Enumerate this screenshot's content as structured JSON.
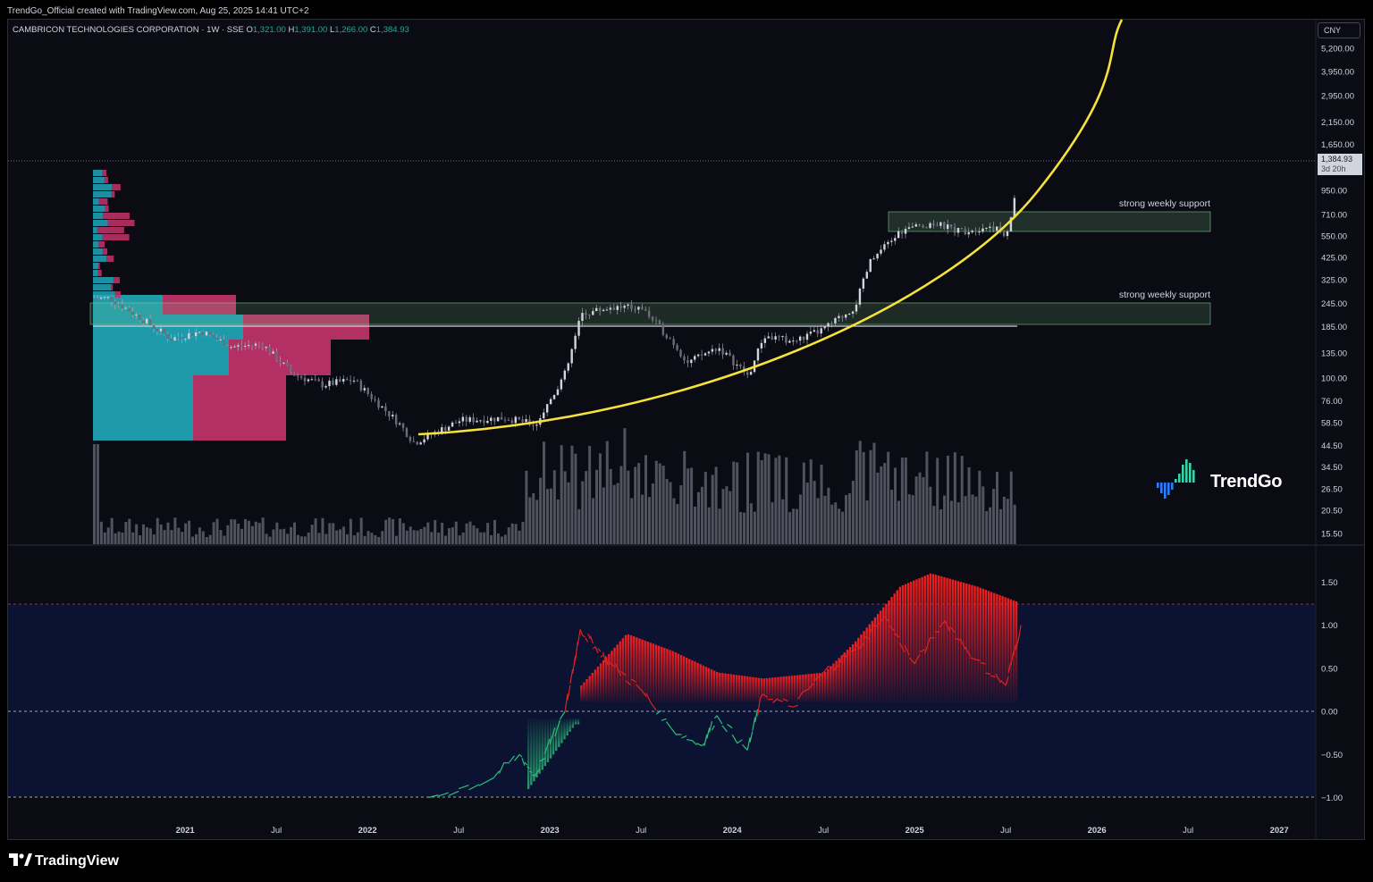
{
  "credit": "TrendGo_Official created with TradingView.com, Aug 25, 2025 14:41 UTC+2",
  "symbol": {
    "name": "CAMBRICON TECHNOLOGIES CORPORATION · 1W · SSE",
    "o_label": "O",
    "o": "1,321.00",
    "h_label": "H",
    "h": "1,391.00",
    "l_label": "L",
    "l": "1,266.00",
    "c_label": "C",
    "c": "1,384.93"
  },
  "currency": "CNY",
  "last_price": {
    "value": "1,384.93",
    "countdown": "3d 20h"
  },
  "brand": {
    "name": "TrendGo"
  },
  "footer_brand": "TradingView",
  "colors": {
    "background": "#0b0b14",
    "accent_yellow": "#f5e23a",
    "support_zone": "#7fd08a",
    "profile_teal": "#22a7b8",
    "profile_pink": "#c2346b",
    "indicator_red": "#e0221f",
    "indicator_green": "#2bc07a",
    "indicator_panel": "#0f1a4a"
  },
  "chart_data": [
    {
      "type": "candlestick",
      "title": "CAMBRICON TECHNOLOGIES CORPORATION · 1W · SSE",
      "y_scale": "log",
      "y_ticks": [
        "5,200.00",
        "3,950.00",
        "2,950.00",
        "2,150.00",
        "1,650.00",
        "950.00",
        "710.00",
        "550.00",
        "425.00",
        "325.00",
        "245.00",
        "185.00",
        "135.00",
        "100.00",
        "76.00",
        "58.50",
        "44.50",
        "34.50",
        "26.50",
        "20.50",
        "15.50"
      ],
      "x_ticks": [
        "2021",
        "Jul",
        "2022",
        "Jul",
        "2023",
        "Jul",
        "2024",
        "Jul",
        "2025",
        "Jul",
        "2026",
        "Jul",
        "2027"
      ],
      "price_path": [
        {
          "x": "2020-08",
          "y": 260
        },
        {
          "x": "2020-10",
          "y": 205
        },
        {
          "x": "2020-12",
          "y": 160
        },
        {
          "x": "2021-02",
          "y": 175
        },
        {
          "x": "2021-04",
          "y": 145
        },
        {
          "x": "2021-06",
          "y": 150
        },
        {
          "x": "2021-08",
          "y": 105
        },
        {
          "x": "2021-10",
          "y": 92
        },
        {
          "x": "2021-12",
          "y": 98
        },
        {
          "x": "2022-03",
          "y": 58
        },
        {
          "x": "2022-04",
          "y": 46
        },
        {
          "x": "2022-07",
          "y": 60
        },
        {
          "x": "2022-10",
          "y": 62
        },
        {
          "x": "2022-12",
          "y": 57
        },
        {
          "x": "2023-02",
          "y": 108
        },
        {
          "x": "2023-03",
          "y": 215
        },
        {
          "x": "2023-05",
          "y": 235
        },
        {
          "x": "2023-07",
          "y": 230
        },
        {
          "x": "2023-09",
          "y": 155
        },
        {
          "x": "2023-10",
          "y": 120
        },
        {
          "x": "2023-12",
          "y": 145
        },
        {
          "x": "2024-02",
          "y": 102
        },
        {
          "x": "2024-03",
          "y": 165
        },
        {
          "x": "2024-05",
          "y": 155
        },
        {
          "x": "2024-07",
          "y": 180
        },
        {
          "x": "2024-09",
          "y": 235
        },
        {
          "x": "2024-10",
          "y": 400
        },
        {
          "x": "2024-12",
          "y": 580
        },
        {
          "x": "2025-02",
          "y": 640
        },
        {
          "x": "2025-04",
          "y": 580
        },
        {
          "x": "2025-06",
          "y": 620
        },
        {
          "x": "2025-07",
          "y": 540
        },
        {
          "x": "2025-08",
          "y": 1384.93
        }
      ],
      "annotations": [
        {
          "text": "strong weekly support",
          "zone": [
            560,
            730
          ]
        },
        {
          "text": "strong weekly support",
          "zone": [
            190,
            250
          ]
        }
      ],
      "reference_line": 187,
      "last_price": 1384.93
    },
    {
      "type": "line",
      "title": "",
      "y_ticks": [
        "1.50",
        "1.00",
        "0.50",
        "0.00",
        "−0.50",
        "−1.00"
      ],
      "levels": [
        1.25,
        0,
        -1.0
      ],
      "series": [
        {
          "values": [
            {
              "x": "2022-05",
              "y": -1.0
            },
            {
              "x": "2022-09",
              "y": -0.8
            },
            {
              "x": "2022-11",
              "y": -0.5
            },
            {
              "x": "2022-12",
              "y": -0.75
            },
            {
              "x": "2023-02",
              "y": 0.0
            },
            {
              "x": "2023-03",
              "y": 0.95
            },
            {
              "x": "2023-04",
              "y": 0.75
            },
            {
              "x": "2023-05",
              "y": 0.55
            },
            {
              "x": "2023-07",
              "y": 0.25
            },
            {
              "x": "2023-09",
              "y": -0.2
            },
            {
              "x": "2023-11",
              "y": -0.4
            },
            {
              "x": "2023-12",
              "y": -0.05
            },
            {
              "x": "2024-02",
              "y": -0.45
            },
            {
              "x": "2024-03",
              "y": 0.2
            },
            {
              "x": "2024-05",
              "y": 0.05
            },
            {
              "x": "2024-07",
              "y": 0.45
            },
            {
              "x": "2024-09",
              "y": 0.7
            },
            {
              "x": "2024-11",
              "y": 1.1
            },
            {
              "x": "2025-01",
              "y": 0.55
            },
            {
              "x": "2025-03",
              "y": 1.05
            },
            {
              "x": "2025-05",
              "y": 0.6
            },
            {
              "x": "2025-07",
              "y": 0.3
            },
            {
              "x": "2025-08",
              "y": 1.0
            }
          ]
        },
        {
          "values": [
            {
              "x": "2023-03",
              "y": 0.3
            },
            {
              "x": "2023-06",
              "y": 0.9
            },
            {
              "x": "2023-09",
              "y": 0.7
            },
            {
              "x": "2023-12",
              "y": 0.45
            },
            {
              "x": "2024-03",
              "y": 0.38
            },
            {
              "x": "2024-07",
              "y": 0.45
            },
            {
              "x": "2024-09",
              "y": 0.8
            },
            {
              "x": "2024-12",
              "y": 1.45
            },
            {
              "x": "2025-02",
              "y": 1.6
            },
            {
              "x": "2025-05",
              "y": 1.45
            },
            {
              "x": "2025-08",
              "y": 1.25
            }
          ]
        }
      ]
    }
  ]
}
